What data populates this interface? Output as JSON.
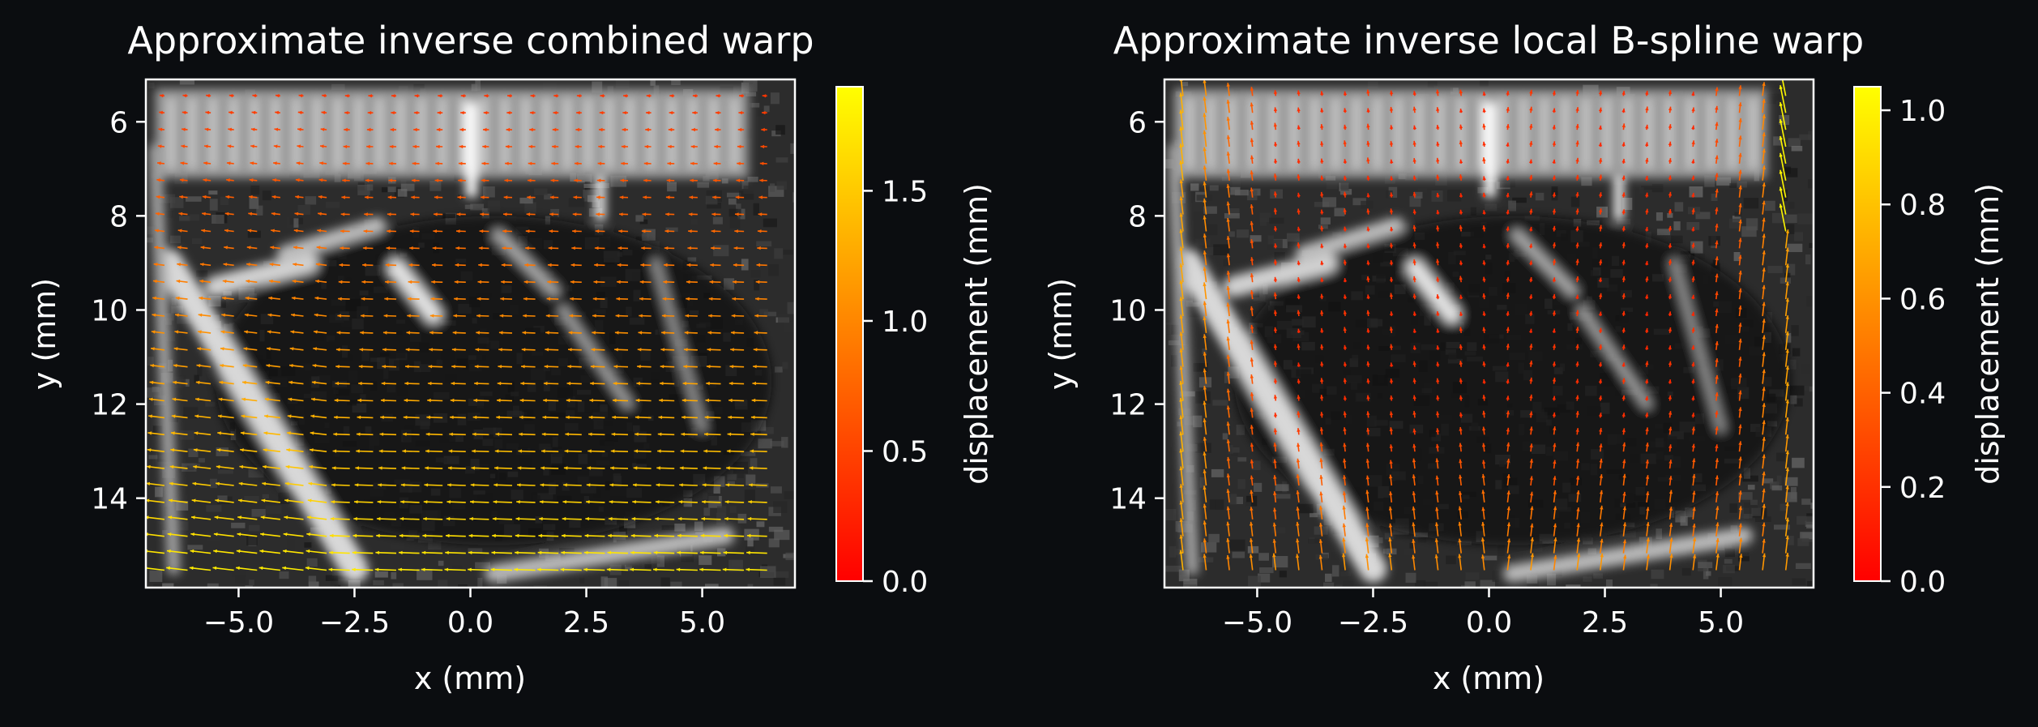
{
  "background": "#0b0d10",
  "chart_data": [
    {
      "type": "heatmap",
      "overlay": "quiver",
      "title": "Approximate inverse combined warp",
      "xlabel": "x (mm)",
      "ylabel": "y (mm)",
      "xlim": [
        -7.0,
        7.0
      ],
      "ylim": [
        15.9,
        5.1
      ],
      "y_inverted": true,
      "xticks": [
        -5.0,
        -2.5,
        0.0,
        2.5,
        5.0
      ],
      "xtick_labels": [
        "−5.0",
        "−2.5",
        "0.0",
        "2.5",
        "5.0"
      ],
      "yticks": [
        6,
        8,
        10,
        12,
        14
      ],
      "ytick_labels": [
        "6",
        "8",
        "10",
        "12",
        "14"
      ],
      "image": "grayscale ultrasound scan",
      "colormap": "autumn",
      "arrow_pattern": "leftward, magnitude increasing toward the bottom",
      "colorbar": {
        "label": "displacement (mm)",
        "range": [
          0.0,
          1.9
        ],
        "ticks": [
          0.0,
          0.5,
          1.0,
          1.5
        ],
        "tick_labels": [
          "0.0",
          "0.5",
          "1.0",
          "1.5"
        ],
        "colors": [
          "#ff0000",
          "#ffff00"
        ]
      }
    },
    {
      "type": "heatmap",
      "overlay": "quiver",
      "title": "Approximate inverse local B-spline warp",
      "xlabel": "x (mm)",
      "ylabel": "y (mm)",
      "xlim": [
        -7.0,
        7.0
      ],
      "ylim": [
        15.9,
        5.1
      ],
      "y_inverted": true,
      "xticks": [
        -5.0,
        -2.5,
        0.0,
        2.5,
        5.0
      ],
      "xtick_labels": [
        "−5.0",
        "−2.5",
        "0.0",
        "2.5",
        "5.0"
      ],
      "yticks": [
        6,
        8,
        10,
        12,
        14
      ],
      "ytick_labels": [
        "6",
        "8",
        "10",
        "12",
        "14"
      ],
      "image": "grayscale ultrasound scan",
      "colormap": "autumn",
      "arrow_pattern": "mostly vertical, larger near the left, right and bottom edges",
      "colorbar": {
        "label": "displacement (mm)",
        "range": [
          0.0,
          1.05
        ],
        "ticks": [
          0.0,
          0.2,
          0.4,
          0.6,
          0.8,
          1.0
        ],
        "tick_labels": [
          "0.0",
          "0.2",
          "0.4",
          "0.6",
          "0.8",
          "1.0"
        ],
        "colors": [
          "#ff0000",
          "#ffff00"
        ]
      }
    }
  ]
}
